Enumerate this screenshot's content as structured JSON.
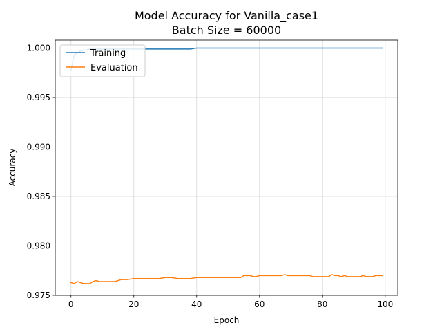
{
  "chart_data": {
    "type": "line",
    "title": "Model Accuracy for Vanilla_case1",
    "subtitle": "Batch Size = 60000",
    "xlabel": "Epoch",
    "ylabel": "Accuracy",
    "xlim": [
      -5,
      104
    ],
    "ylim": [
      0.975,
      1.0008
    ],
    "xticks": [
      0,
      20,
      40,
      60,
      80,
      100
    ],
    "yticks": [
      0.975,
      0.98,
      0.985,
      0.99,
      0.995,
      1.0
    ],
    "xtick_labels": [
      "0",
      "20",
      "40",
      "60",
      "80",
      "100"
    ],
    "ytick_labels": [
      "0.975",
      "0.980",
      "0.985",
      "0.990",
      "0.995",
      "1.000"
    ],
    "grid": true,
    "legend_position": "top-left",
    "series": [
      {
        "name": "Training",
        "color": "#1f77b4",
        "x": [
          0,
          1,
          2,
          3,
          4,
          5,
          6,
          8,
          10,
          15,
          20,
          25,
          30,
          35,
          38,
          40,
          45,
          50,
          60,
          70,
          80,
          90,
          99
        ],
        "y": [
          0.9977,
          0.9993,
          0.9995,
          0.9997,
          0.9998,
          0.9998,
          0.9999,
          0.9999,
          0.9999,
          0.9999,
          0.9999,
          0.9999,
          0.9999,
          0.9999,
          0.9999,
          1.0,
          1.0,
          1.0,
          1.0,
          1.0,
          1.0,
          1.0,
          1.0
        ]
      },
      {
        "name": "Evaluation",
        "color": "#ff7f0e",
        "x": [
          0,
          1,
          2,
          3,
          4,
          5,
          6,
          7,
          8,
          9,
          10,
          12,
          14,
          15,
          16,
          18,
          20,
          22,
          24,
          26,
          28,
          30,
          32,
          34,
          36,
          38,
          40,
          45,
          50,
          53,
          54,
          55,
          56,
          57,
          58,
          59,
          60,
          62,
          65,
          67,
          68,
          69,
          70,
          72,
          75,
          76,
          77,
          78,
          80,
          82,
          83,
          84,
          85,
          86,
          87,
          88,
          89,
          90,
          92,
          93,
          94,
          95,
          96,
          97,
          98,
          99
        ],
        "y": [
          0.9763,
          0.9762,
          0.9764,
          0.9763,
          0.9762,
          0.9762,
          0.9762,
          0.9764,
          0.9765,
          0.9764,
          0.9764,
          0.9764,
          0.9764,
          0.9765,
          0.9766,
          0.9766,
          0.9767,
          0.9767,
          0.9767,
          0.9767,
          0.9767,
          0.9768,
          0.9768,
          0.9767,
          0.9767,
          0.9767,
          0.9768,
          0.9768,
          0.9768,
          0.9768,
          0.9768,
          0.977,
          0.977,
          0.977,
          0.9769,
          0.9769,
          0.977,
          0.977,
          0.977,
          0.977,
          0.9771,
          0.977,
          0.977,
          0.977,
          0.977,
          0.977,
          0.9769,
          0.9769,
          0.9769,
          0.9769,
          0.9771,
          0.977,
          0.977,
          0.9769,
          0.977,
          0.9769,
          0.9769,
          0.9769,
          0.9769,
          0.977,
          0.9769,
          0.9769,
          0.9769,
          0.977,
          0.977,
          0.977
        ]
      }
    ]
  }
}
